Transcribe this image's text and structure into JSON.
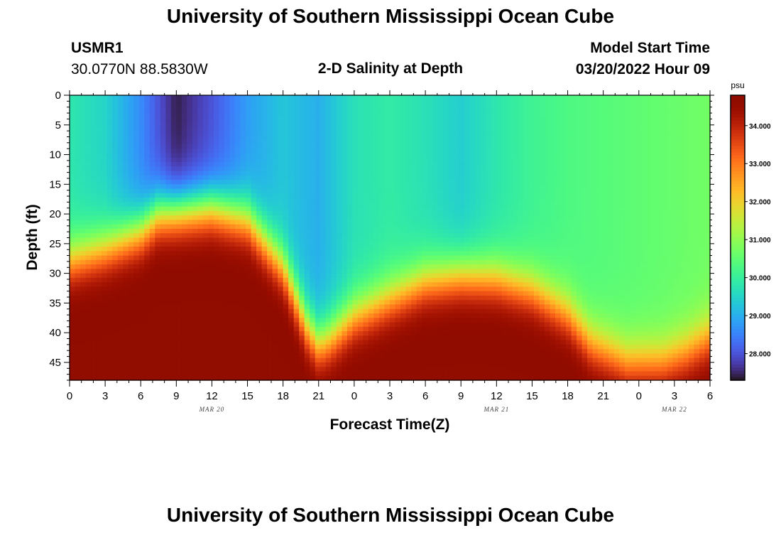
{
  "header": {
    "title": "University of Southern Mississippi Ocean Cube",
    "station_id": "USMR1",
    "coordinates": "30.0770N  88.5830W",
    "subtitle": "2-D Salinity at Depth",
    "model_start_label": "Model Start Time",
    "model_start_value": "03/20/2022 Hour 09"
  },
  "footer": {
    "title": "University of Southern Mississippi Ocean Cube"
  },
  "chart_data": {
    "type": "heatmap",
    "title": "2-D Salinity at Depth",
    "xlabel": "Forecast Time(Z)",
    "ylabel": "Depth (ft)",
    "x_tick_labels": [
      "0",
      "3",
      "6",
      "9",
      "12",
      "15",
      "18",
      "21",
      "0",
      "3",
      "6",
      "9",
      "12",
      "15",
      "18",
      "21",
      "0",
      "3",
      "6"
    ],
    "date_labels": [
      {
        "text": "MAR 20",
        "at_hour": 12
      },
      {
        "text": "MAR 21",
        "at_hour": 36
      },
      {
        "text": "MAR 22",
        "at_hour": 51
      }
    ],
    "xlim_hours": [
      0,
      54
    ],
    "y_ticks": [
      0,
      5,
      10,
      15,
      20,
      25,
      30,
      35,
      40,
      45
    ],
    "ylim": [
      0,
      48
    ],
    "colorbar": {
      "unit": "psu",
      "ticks": [
        28.0,
        29.0,
        30.0,
        31.0,
        32.0,
        33.0,
        34.0
      ],
      "tick_labels": [
        "28.000",
        "29.000",
        "30.000",
        "31.000",
        "32.000",
        "33.000",
        "34.000"
      ],
      "range": [
        27.3,
        34.8
      ]
    },
    "interface_depth_profile": {
      "note_units": "hours vs feet",
      "hours": [
        0,
        3,
        6,
        7.5,
        9,
        12,
        15,
        18,
        20,
        21,
        22,
        24,
        27,
        30,
        33,
        36,
        39,
        42,
        44,
        47,
        50,
        52,
        54
      ],
      "depth_ft": [
        28,
        26,
        23,
        20,
        19.5,
        19,
        21,
        29,
        39,
        42,
        41,
        37.5,
        34.5,
        31.5,
        30.5,
        31,
        33,
        37,
        42,
        45,
        45,
        43.5,
        41
      ]
    },
    "surface_salinity_profile": {
      "hours": [
        0,
        3,
        6,
        9,
        12,
        15,
        18,
        21,
        24,
        27,
        30,
        33,
        36,
        39,
        42,
        45,
        48,
        51,
        54
      ],
      "psu": [
        29.8,
        29.5,
        28.6,
        27.4,
        28.0,
        28.8,
        29.3,
        29.0,
        29.7,
        29.9,
        29.7,
        29.4,
        29.8,
        30.1,
        30.3,
        30.4,
        30.5,
        30.6,
        30.7
      ]
    },
    "bottom_salinity_psu": 34.8
  }
}
